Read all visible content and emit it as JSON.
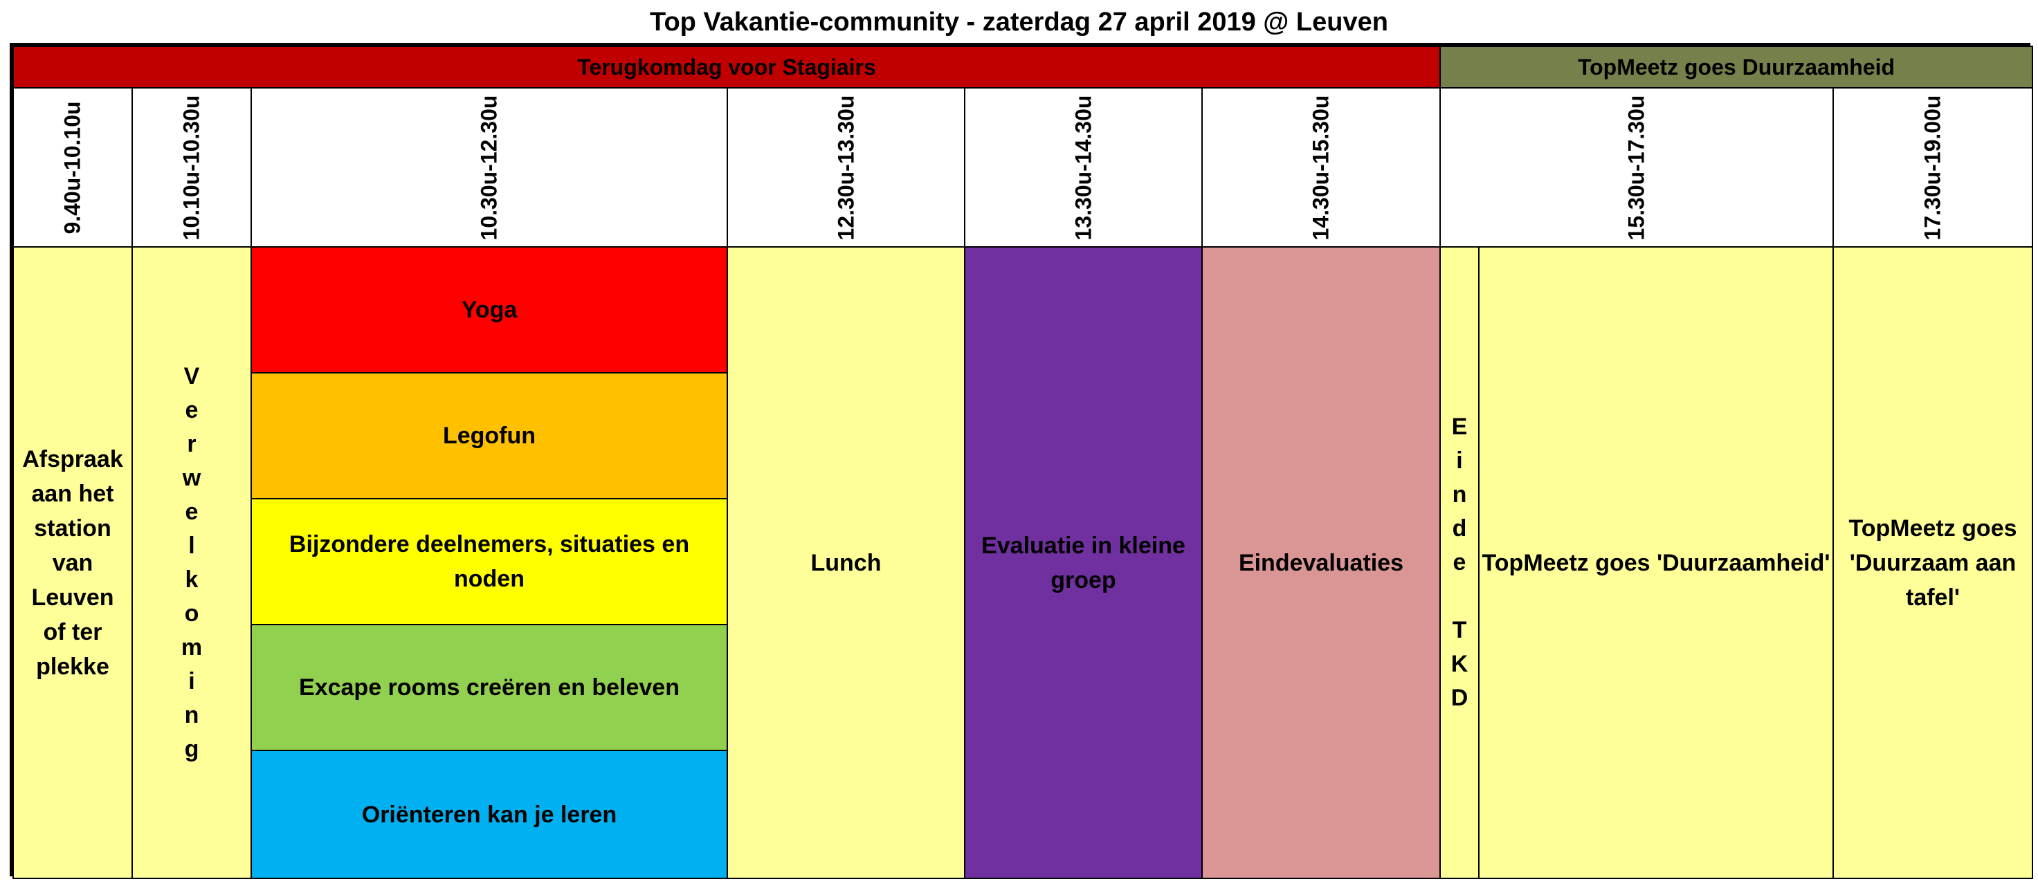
{
  "title": "Top Vakantie-community - zaterdag 27 april 2019 @ Leuven",
  "bands": {
    "left": "Terugkomdag voor Stagiairs",
    "right": "TopMeetz goes Duurzaamheid"
  },
  "times": [
    "9.40u-10.10u",
    "10.10u-10.30u",
    "10.30u-12.30u",
    "12.30u-13.30u",
    "13.30u-14.30u",
    "14.30u-15.30u",
    "15.30u-17.30u",
    "17.30u-19.00u"
  ],
  "activities": {
    "afspraak": "Afspraak aan het station van Leuven of ter plekke",
    "verwelkoming": "V\ne\nr\nw\ne\nl\nk\no\nm\ni\nn\ng",
    "workshops": [
      "Yoga",
      "Legofun",
      "Bijzondere deelnemers, situaties en noden",
      "Excape rooms creëren en beleven",
      "Oriënteren kan je leren"
    ],
    "lunch": "Lunch",
    "evaluatie": "Evaluatie in kleine groep",
    "eindevaluaties": "Eindevaluaties",
    "einde_tkd": "E\ni\nn\nd\ne\n\nT\nK\nD",
    "topmeetz1": "TopMeetz goes 'Duurzaamheid'",
    "topmeetz2": "TopMeetz goes 'Duurzaam aan tafel'"
  },
  "colors": {
    "band_red": "#c00000",
    "band_olive": "#76804a",
    "cell_yellow": "#ffff99",
    "yoga": "#ff0000",
    "legofun": "#ffc000",
    "bijzondere": "#ffff00",
    "excape": "#92d050",
    "orienteren": "#00b0f0",
    "evaluatie": "#7030a0",
    "eindevaluaties": "#da9694"
  }
}
